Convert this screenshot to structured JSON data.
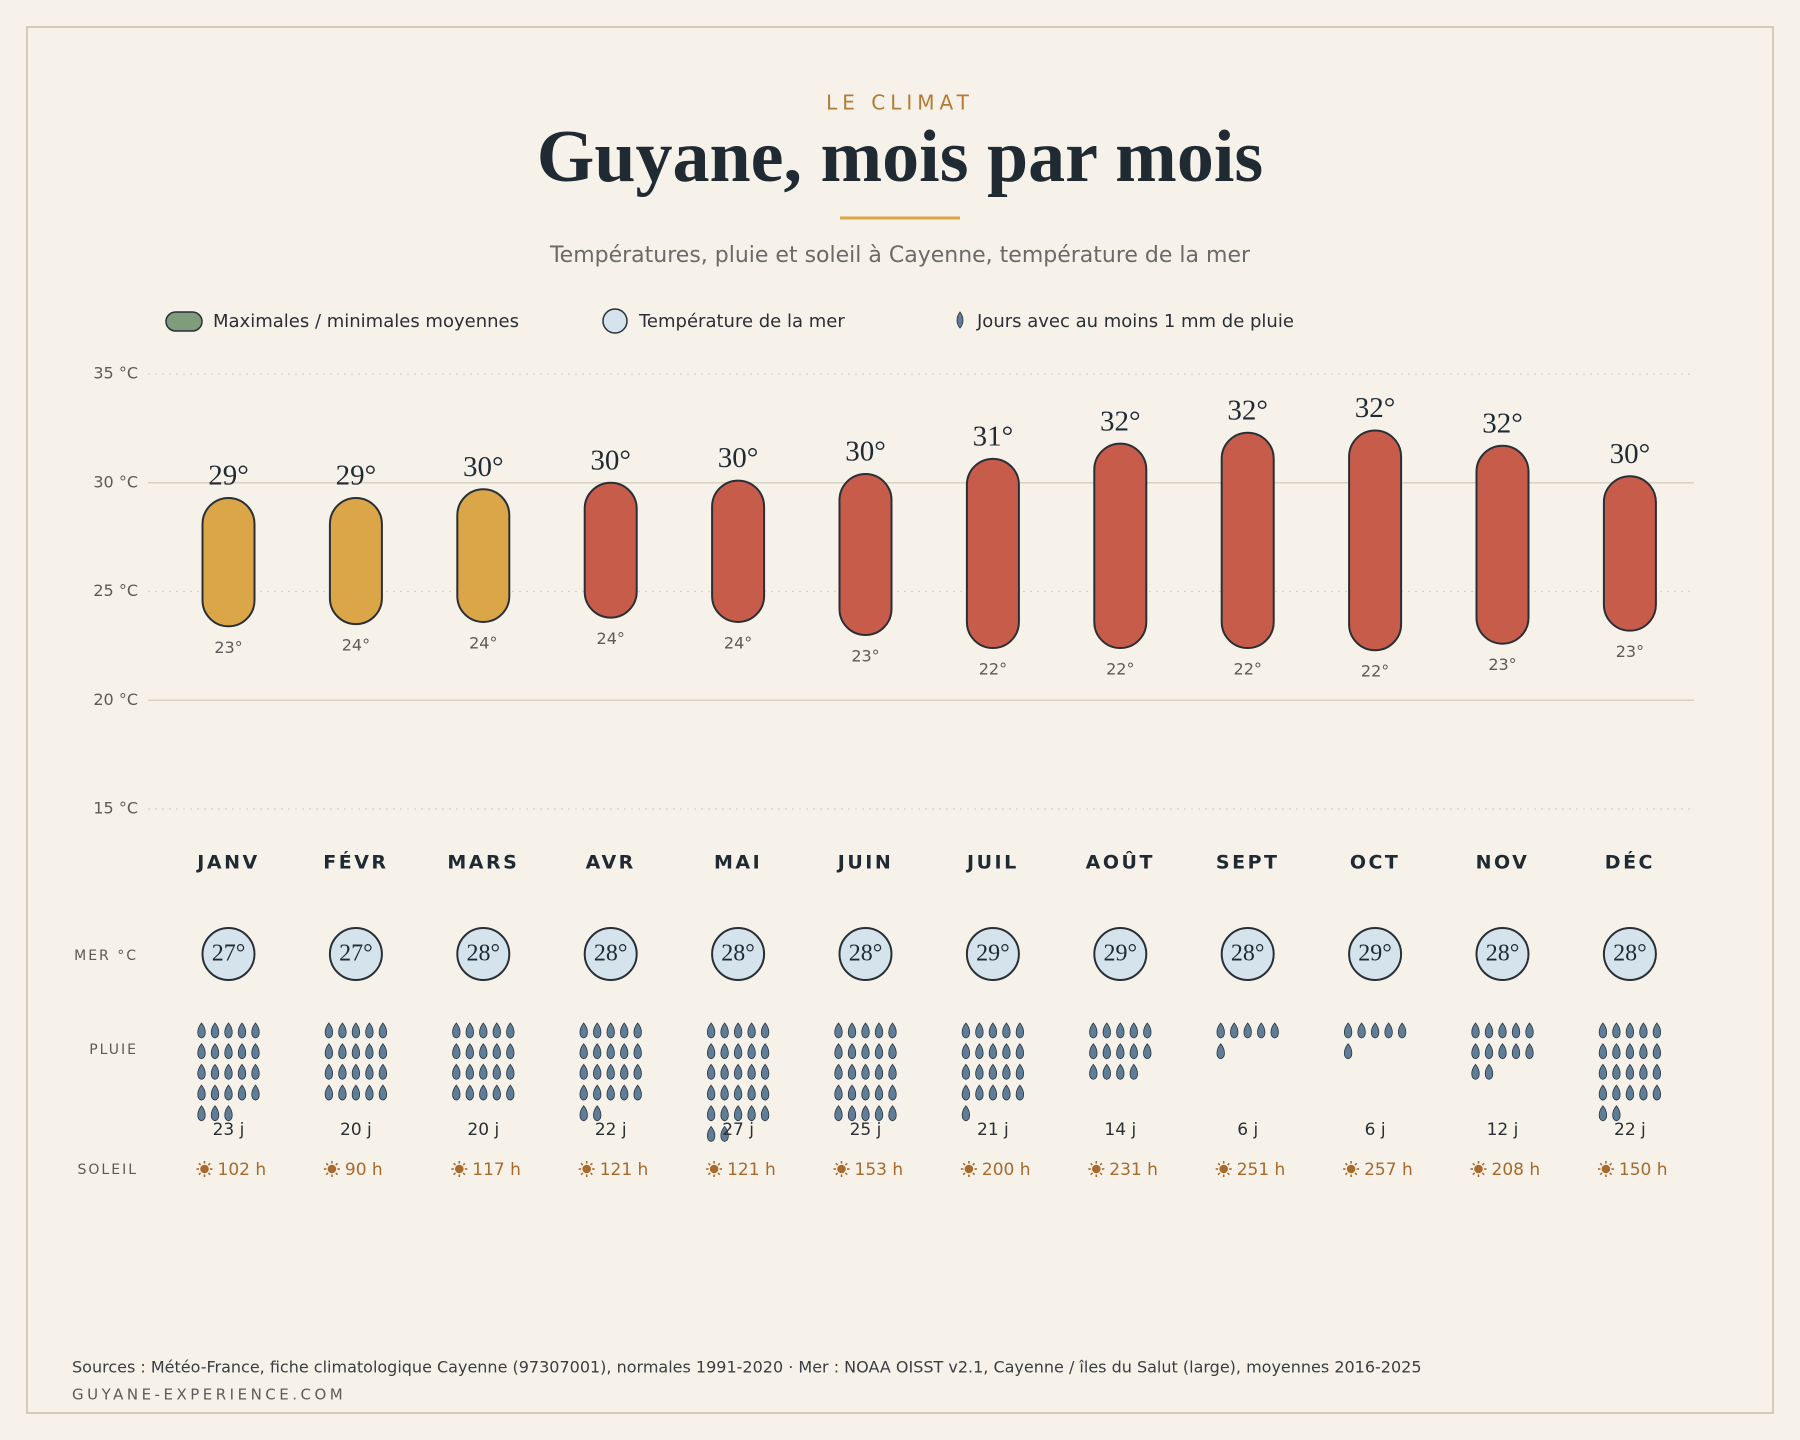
{
  "header": {
    "kicker": "LE CLIMAT",
    "title": "Guyane, mois par mois",
    "subtitle": "Températures, pluie et soleil à Cayenne, température de la mer"
  },
  "chart_data": {
    "type": "range-bar",
    "categories": [
      "JANV",
      "FÉVR",
      "MARS",
      "AVR",
      "MAI",
      "JUIN",
      "JUIL",
      "AOÛT",
      "SEPT",
      "OCT",
      "NOV",
      "DÉC"
    ],
    "ylim": [
      15,
      35
    ],
    "yticks": [
      {
        "value": 15,
        "label": "15 °C"
      },
      {
        "value": 20,
        "label": "20 °C"
      },
      {
        "value": 25,
        "label": "25 °C"
      },
      {
        "value": 30,
        "label": "30 °C"
      },
      {
        "value": 35,
        "label": "35 °C"
      }
    ],
    "temperature": {
      "name": "Maximales / minimales moyennes",
      "color": "#7f9c7d",
      "bar_colors": [
        "#dba647",
        "#dba647",
        "#dba647",
        "#c85c4a",
        "#c85c4a",
        "#c85c4a",
        "#c85c4a",
        "#c85c4a",
        "#c85c4a",
        "#c85c4a",
        "#c85c4a",
        "#c85c4a"
      ],
      "max": [
        29.3,
        29.3,
        29.7,
        30.0,
        30.1,
        30.4,
        31.1,
        31.8,
        32.3,
        32.4,
        31.7,
        30.3
      ],
      "max_labels": [
        "29°",
        "29°",
        "30°",
        "30°",
        "30°",
        "30°",
        "31°",
        "32°",
        "32°",
        "32°",
        "32°",
        "30°"
      ],
      "min": [
        23.4,
        23.5,
        23.6,
        23.8,
        23.6,
        23.0,
        22.4,
        22.4,
        22.4,
        22.3,
        22.6,
        23.2
      ],
      "min_labels": [
        "23°",
        "24°",
        "24°",
        "24°",
        "24°",
        "23°",
        "22°",
        "22°",
        "22°",
        "22°",
        "23°",
        "23°"
      ]
    },
    "sea": {
      "name": "Température de la mer",
      "row_label": "MER °C",
      "color": "#d4e3ec",
      "values": [
        27,
        27,
        28,
        28,
        28,
        28,
        29,
        29,
        28,
        29,
        28,
        28
      ],
      "value_labels": [
        "27°",
        "27°",
        "28°",
        "28°",
        "28°",
        "28°",
        "29°",
        "29°",
        "28°",
        "29°",
        "28°",
        "28°"
      ]
    },
    "rain": {
      "name": "Jours avec au moins 1 mm de pluie",
      "row_label": "PLUIE",
      "color": "#5f7d96",
      "values": [
        23,
        20,
        20,
        22,
        27,
        25,
        21,
        14,
        6,
        6,
        12,
        22
      ],
      "value_labels": [
        "23 j",
        "20 j",
        "20 j",
        "22 j",
        "27 j",
        "25 j",
        "21 j",
        "14 j",
        "6 j",
        "6 j",
        "12 j",
        "22 j"
      ]
    },
    "sunshine": {
      "row_label": "SOLEIL",
      "color": "#a86a2c",
      "values": [
        102,
        90,
        117,
        121,
        121,
        153,
        200,
        231,
        251,
        257,
        208,
        150
      ],
      "value_labels": [
        "102 h",
        "90 h",
        "117 h",
        "121 h",
        "121 h",
        "153 h",
        "200 h",
        "231 h",
        "251 h",
        "257 h",
        "208 h",
        "150 h"
      ]
    }
  },
  "footer": {
    "source": "Sources : Météo-France, fiche climatologique Cayenne (97307001), normales 1991-2020 · Mer : NOAA OISST v2.1, Cayenne / îles du Salut (large), moyennes 2016-2025",
    "site": "GUYANE-EXPERIENCE.COM"
  }
}
